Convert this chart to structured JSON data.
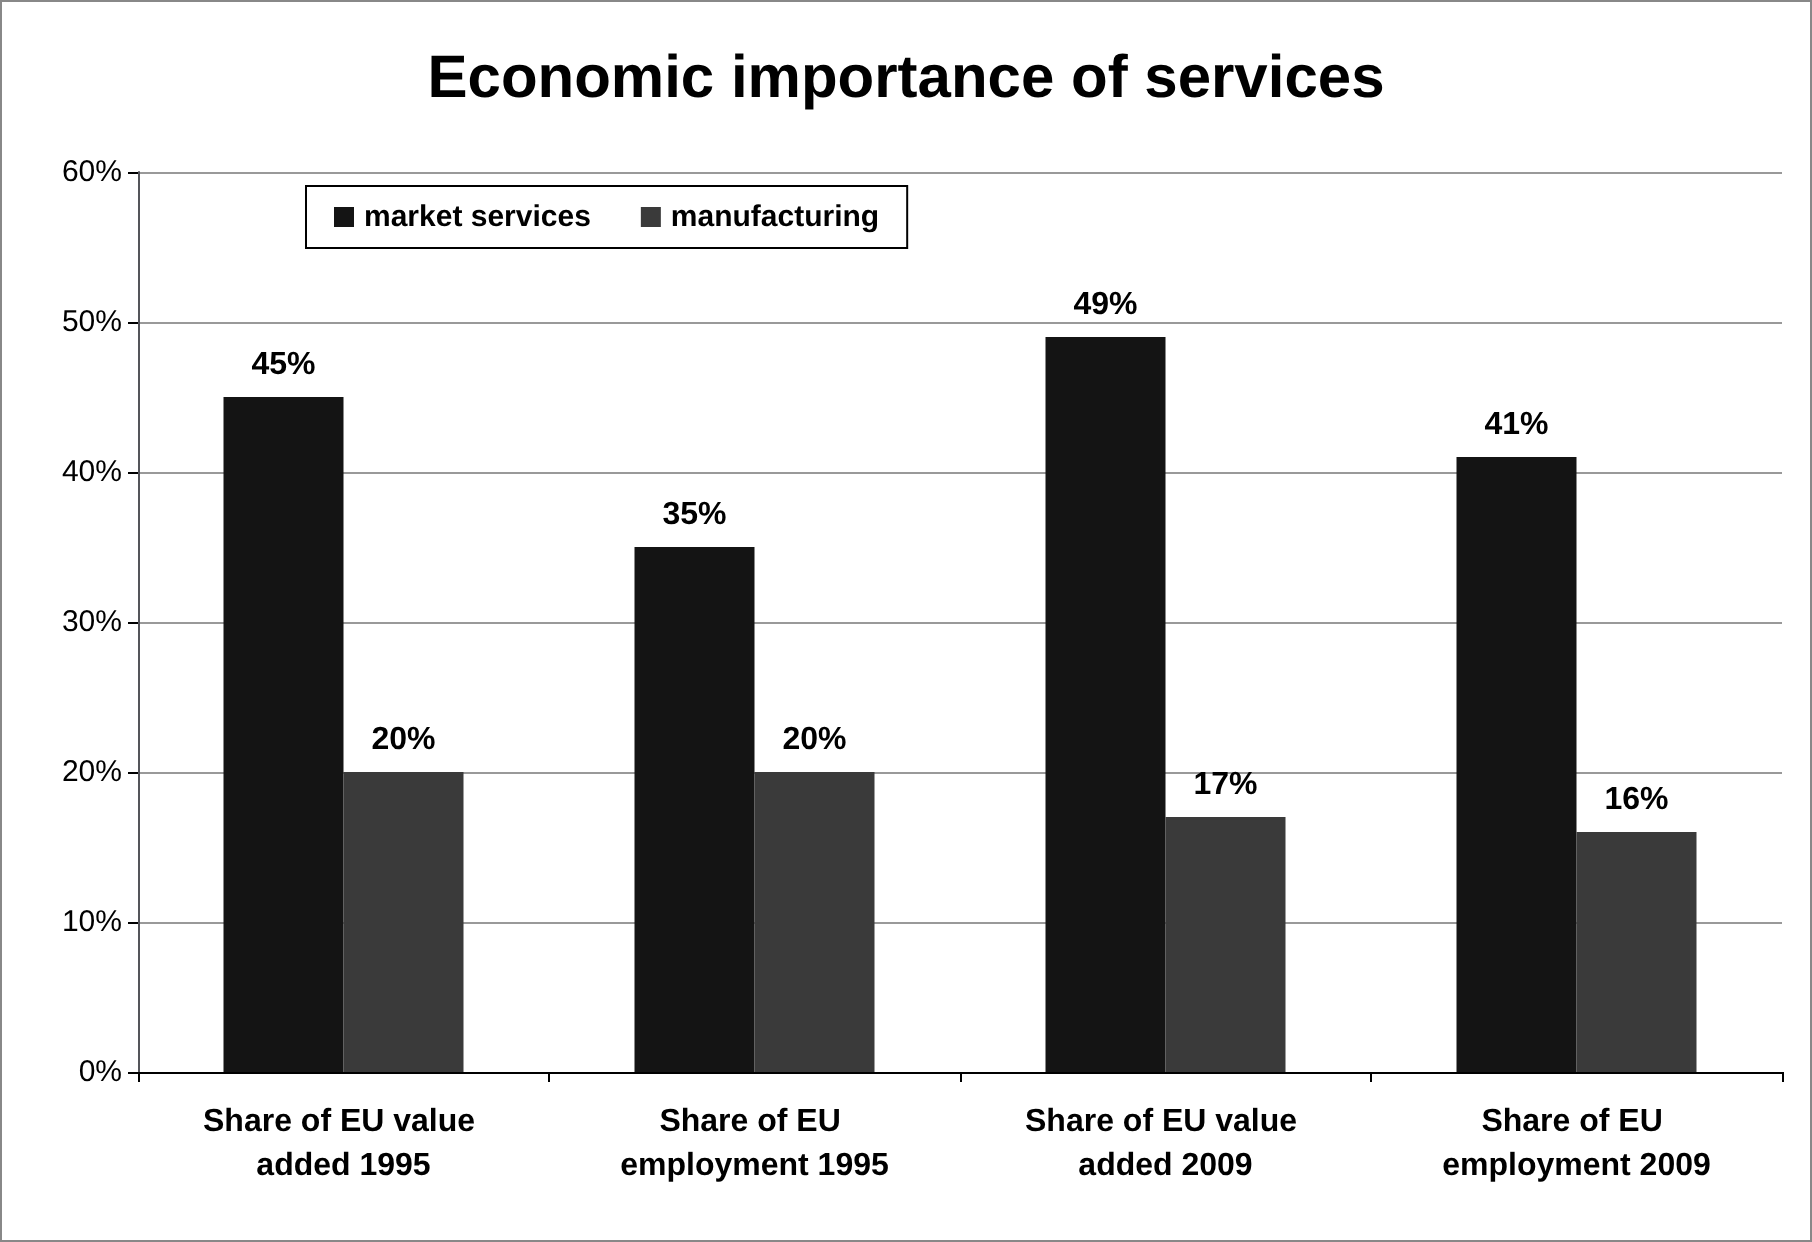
{
  "chart_data": {
    "type": "bar",
    "title": "Economic importance of services",
    "categories": [
      "Share of EU value added 1995",
      "Share of EU employment 1995",
      "Share of EU value added 2009",
      "Share of EU employment 2009"
    ],
    "series": [
      {
        "name": "market services",
        "color": "#141414",
        "values": [
          45,
          35,
          49,
          41
        ],
        "value_labels": [
          "45%",
          "35%",
          "49%",
          "41%"
        ]
      },
      {
        "name": "manufacturing",
        "color": "#3a3a3a",
        "values": [
          20,
          20,
          17,
          16
        ],
        "value_labels": [
          "20%",
          "20%",
          "17%",
          "16%"
        ]
      }
    ],
    "ylim": [
      0,
      60
    ],
    "yticks": [
      {
        "value": 0,
        "label": "0%"
      },
      {
        "value": 10,
        "label": "10%"
      },
      {
        "value": 20,
        "label": "20%"
      },
      {
        "value": 30,
        "label": "30%"
      },
      {
        "value": 40,
        "label": "40%"
      },
      {
        "value": 50,
        "label": "50%"
      },
      {
        "value": 60,
        "label": "60%"
      }
    ],
    "grid": "y",
    "legend": "top left"
  }
}
